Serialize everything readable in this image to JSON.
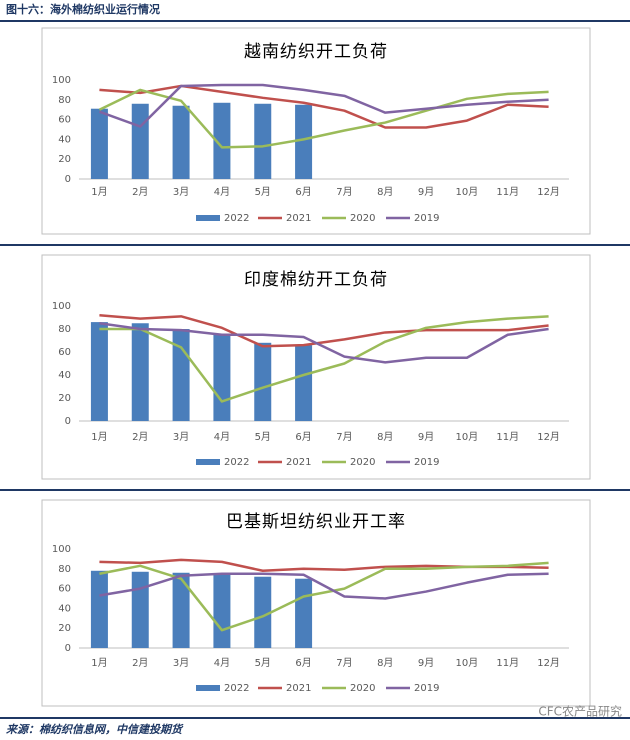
{
  "header": {
    "title": "图十六：海外棉纺织业运行情况"
  },
  "chart_data": [
    {
      "type": "bar",
      "title": "越南纺织开工负荷",
      "categories": [
        "1月",
        "2月",
        "3月",
        "4月",
        "5月",
        "6月",
        "7月",
        "8月",
        "9月",
        "10月",
        "11月",
        "12月"
      ],
      "ylim": [
        0,
        100
      ],
      "yticks": [
        0,
        20,
        40,
        60,
        80,
        100
      ],
      "grid": false,
      "legend": "bottom",
      "series": [
        {
          "name": "2022",
          "type": "bar",
          "color": "#4a7ebb",
          "values": [
            71,
            76,
            74,
            77,
            76,
            75,
            null,
            null,
            null,
            null,
            null,
            null
          ]
        },
        {
          "name": "2021",
          "type": "line",
          "color": "#c0504d",
          "values": [
            90,
            87,
            94,
            88,
            82,
            77,
            69,
            52,
            52,
            59,
            75,
            73
          ]
        },
        {
          "name": "2020",
          "type": "line",
          "color": "#9bbb59",
          "values": [
            70,
            90,
            79,
            32,
            33,
            40,
            49,
            57,
            69,
            81,
            86,
            88
          ]
        },
        {
          "name": "2019",
          "type": "line",
          "color": "#8064a2",
          "values": [
            68,
            53,
            94,
            95,
            95,
            90,
            84,
            67,
            71,
            75,
            78,
            80
          ]
        }
      ]
    },
    {
      "type": "bar",
      "title": "印度棉纺开工负荷",
      "categories": [
        "1月",
        "2月",
        "3月",
        "4月",
        "5月",
        "6月",
        "7月",
        "8月",
        "9月",
        "10月",
        "11月",
        "12月"
      ],
      "ylim": [
        0,
        100
      ],
      "yticks": [
        0,
        20,
        40,
        60,
        80,
        100
      ],
      "grid": false,
      "legend": "bottom",
      "series": [
        {
          "name": "2022",
          "type": "bar",
          "color": "#4a7ebb",
          "values": [
            86,
            85,
            80,
            76,
            68,
            66,
            null,
            null,
            null,
            null,
            null,
            null
          ]
        },
        {
          "name": "2021",
          "type": "line",
          "color": "#c0504d",
          "values": [
            92,
            89,
            91,
            81,
            65,
            66,
            71,
            77,
            79,
            79,
            79,
            83
          ]
        },
        {
          "name": "2020",
          "type": "line",
          "color": "#9bbb59",
          "values": [
            80,
            80,
            64,
            17,
            29,
            40,
            50,
            69,
            81,
            86,
            89,
            91
          ]
        },
        {
          "name": "2019",
          "type": "line",
          "color": "#8064a2",
          "values": [
            85,
            80,
            79,
            75,
            75,
            73,
            56,
            51,
            55,
            55,
            75,
            80
          ]
        }
      ]
    },
    {
      "type": "bar",
      "title": "巴基斯坦纺织业开工率",
      "categories": [
        "1月",
        "2月",
        "3月",
        "4月",
        "5月",
        "6月",
        "7月",
        "8月",
        "9月",
        "10月",
        "11月",
        "12月"
      ],
      "ylim": [
        0,
        100
      ],
      "yticks": [
        0,
        20,
        40,
        60,
        80,
        100
      ],
      "grid": false,
      "legend": "bottom",
      "series": [
        {
          "name": "2022",
          "type": "bar",
          "color": "#4a7ebb",
          "values": [
            78,
            77,
            76,
            75,
            72,
            70,
            null,
            null,
            null,
            null,
            null,
            null
          ]
        },
        {
          "name": "2021",
          "type": "line",
          "color": "#c0504d",
          "values": [
            87,
            86,
            89,
            87,
            78,
            80,
            79,
            82,
            83,
            82,
            82,
            81
          ]
        },
        {
          "name": "2020",
          "type": "line",
          "color": "#9bbb59",
          "values": [
            75,
            83,
            70,
            18,
            32,
            52,
            60,
            80,
            80,
            82,
            83,
            86
          ]
        },
        {
          "name": "2019",
          "type": "line",
          "color": "#8064a2",
          "values": [
            53,
            60,
            73,
            75,
            75,
            74,
            52,
            50,
            57,
            66,
            74,
            75
          ]
        }
      ]
    }
  ],
  "source": "来源：棉纺织信息网，中信建投期货",
  "watermark": "CFC农产品研究"
}
